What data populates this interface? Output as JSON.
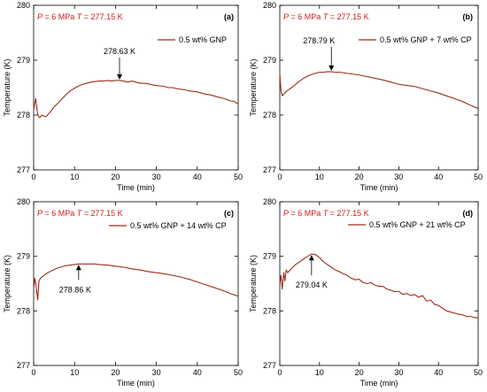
{
  "colors": {
    "series": "#9b2d1a",
    "condition": "#d11a1a",
    "axis": "#000000"
  },
  "chart_data": [
    {
      "type": "line",
      "panel_label": "(a)",
      "condition_text": "P = 6 MPa  T = 277.15 K",
      "xlabel": "Time (min)",
      "ylabel": "Temperature (K)",
      "xlim": [
        0,
        50
      ],
      "ylim": [
        277,
        280
      ],
      "xticks": [
        "0",
        "10",
        "20",
        "30",
        "40",
        "50"
      ],
      "yticks": [
        "277",
        "278",
        "279",
        "280"
      ],
      "legend": "0.5 wt% GNP",
      "annotation": {
        "text": "278.63 K",
        "x": 21,
        "y": 278.63
      },
      "series": [
        {
          "name": "0.5 wt% GNP",
          "x": [
            0,
            0.5,
            1,
            1.5,
            2,
            2.5,
            3,
            4,
            5,
            6,
            7,
            8,
            9,
            10,
            11,
            12,
            13,
            14,
            15,
            16,
            17,
            18,
            19,
            20,
            21,
            22,
            23,
            24,
            25,
            26,
            27,
            28,
            29,
            30,
            31,
            32,
            33,
            34,
            35,
            36,
            37,
            38,
            39,
            40,
            41,
            42,
            43,
            44,
            45,
            46,
            47,
            48,
            49,
            50
          ],
          "y": [
            278.1,
            278.3,
            278.0,
            277.95,
            278.0,
            277.98,
            277.97,
            278.05,
            278.15,
            278.22,
            278.3,
            278.38,
            278.44,
            278.49,
            278.53,
            278.56,
            278.58,
            278.6,
            278.61,
            278.62,
            278.62,
            278.63,
            278.62,
            278.63,
            278.63,
            278.62,
            278.6,
            278.62,
            278.6,
            278.58,
            278.58,
            278.57,
            278.55,
            278.54,
            278.53,
            278.52,
            278.5,
            278.5,
            278.48,
            278.47,
            278.46,
            278.44,
            278.43,
            278.42,
            278.4,
            278.38,
            278.37,
            278.35,
            278.33,
            278.31,
            278.29,
            278.26,
            278.25,
            278.2
          ]
        }
      ]
    },
    {
      "type": "line",
      "panel_label": "(b)",
      "condition_text": "P = 6 MPa  T = 277.15 K",
      "xlabel": "Time (min)",
      "ylabel": "Temperature (K)",
      "xlim": [
        0,
        50
      ],
      "ylim": [
        277,
        280
      ],
      "xticks": [
        "0",
        "10",
        "20",
        "30",
        "40",
        "50"
      ],
      "yticks": [
        "277",
        "278",
        "279",
        "280"
      ],
      "legend": "0.5 wt% GNP + 7 wt% CP",
      "annotation": {
        "text": "278.79 K",
        "x": 13,
        "y": 278.79
      },
      "series": [
        {
          "name": "0.5 wt% GNP + 7 wt% CP",
          "x": [
            0,
            0.3,
            0.6,
            1,
            1.5,
            2,
            3,
            4,
            5,
            6,
            7,
            8,
            9,
            10,
            11,
            12,
            13,
            14,
            15,
            16,
            18,
            20,
            22,
            24,
            26,
            28,
            30,
            32,
            34,
            36,
            38,
            40,
            42,
            44,
            46,
            48,
            50
          ],
          "y": [
            278.75,
            278.45,
            278.35,
            278.38,
            278.42,
            278.45,
            278.5,
            278.56,
            278.62,
            278.67,
            278.71,
            278.74,
            278.76,
            278.78,
            278.78,
            278.79,
            278.79,
            278.78,
            278.78,
            278.77,
            278.75,
            278.73,
            278.7,
            278.67,
            278.64,
            278.6,
            278.56,
            278.54,
            278.52,
            278.48,
            278.44,
            278.4,
            278.35,
            278.3,
            278.25,
            278.18,
            278.12
          ]
        }
      ]
    },
    {
      "type": "line",
      "panel_label": "(c)",
      "condition_text": "P = 6 MPa  T = 277.15 K",
      "xlabel": "Time (min)",
      "ylabel": "Temperature (K)",
      "xlim": [
        0,
        50
      ],
      "ylim": [
        277,
        280
      ],
      "xticks": [
        "0",
        "10",
        "20",
        "30",
        "40",
        "50"
      ],
      "yticks": [
        "277",
        "278",
        "279",
        "280"
      ],
      "legend": "0.5 wt% GNP + 14 wt% CP",
      "annotation": {
        "text": "278.86 K",
        "x": 11,
        "y": 278.86
      },
      "series": [
        {
          "name": "0.5 wt% GNP + 14 wt% CP",
          "x": [
            0,
            0.3,
            0.6,
            1,
            1.3,
            1.7,
            2,
            3,
            4,
            5,
            6,
            7,
            8,
            9,
            10,
            11,
            12,
            13,
            14,
            15,
            16,
            18,
            20,
            22,
            24,
            26,
            28,
            30,
            32,
            34,
            36,
            38,
            40,
            42,
            44,
            46,
            48,
            50
          ],
          "y": [
            278.4,
            278.6,
            278.45,
            278.2,
            278.55,
            278.6,
            278.62,
            278.68,
            278.72,
            278.76,
            278.79,
            278.81,
            278.83,
            278.84,
            278.85,
            278.86,
            278.86,
            278.86,
            278.86,
            278.86,
            278.85,
            278.84,
            278.82,
            278.8,
            278.77,
            278.75,
            278.72,
            278.7,
            278.68,
            278.65,
            278.62,
            278.58,
            278.53,
            278.48,
            278.43,
            278.38,
            278.32,
            278.27
          ]
        }
      ]
    },
    {
      "type": "line",
      "panel_label": "(d)",
      "condition_text": "P = 6 MPa  T = 277.15 K",
      "xlabel": "Time (min)",
      "ylabel": "Temperature (K)",
      "xlim": [
        0,
        50
      ],
      "ylim": [
        277,
        280
      ],
      "xticks": [
        "0",
        "10",
        "20",
        "30",
        "40",
        "50"
      ],
      "yticks": [
        "277",
        "278",
        "279",
        "280"
      ],
      "legend": "0.5 wt% GNP + 21 wt% CP",
      "annotation": {
        "text": "279.04 K",
        "x": 8,
        "y": 279.04
      },
      "series": [
        {
          "name": "0.5 wt% GNP + 21 wt% CP",
          "x": [
            0,
            0.3,
            0.6,
            1,
            1.3,
            1.6,
            2,
            3,
            4,
            5,
            6,
            7,
            8,
            9,
            10,
            11,
            12,
            13,
            14,
            15,
            16,
            17,
            18,
            19,
            20,
            21,
            22,
            23,
            24,
            25,
            26,
            27,
            28,
            29,
            30,
            31,
            32,
            33,
            34,
            35,
            36,
            37,
            38,
            39,
            40,
            41,
            42,
            43,
            44,
            45,
            46,
            47,
            48,
            49,
            50
          ],
          "y": [
            278.5,
            278.65,
            278.4,
            278.7,
            278.55,
            278.75,
            278.7,
            278.78,
            278.85,
            278.9,
            278.95,
            279.0,
            279.04,
            279.03,
            278.98,
            278.9,
            278.85,
            278.8,
            278.75,
            278.72,
            278.68,
            278.65,
            278.6,
            278.57,
            278.58,
            278.52,
            278.5,
            278.52,
            278.47,
            278.45,
            278.45,
            278.4,
            278.38,
            278.35,
            278.36,
            278.3,
            278.32,
            278.28,
            278.3,
            278.25,
            278.28,
            278.18,
            278.2,
            278.12,
            278.1,
            278.05,
            278.0,
            277.98,
            277.96,
            277.94,
            277.93,
            277.9,
            277.9,
            277.88,
            277.87
          ]
        }
      ]
    }
  ]
}
